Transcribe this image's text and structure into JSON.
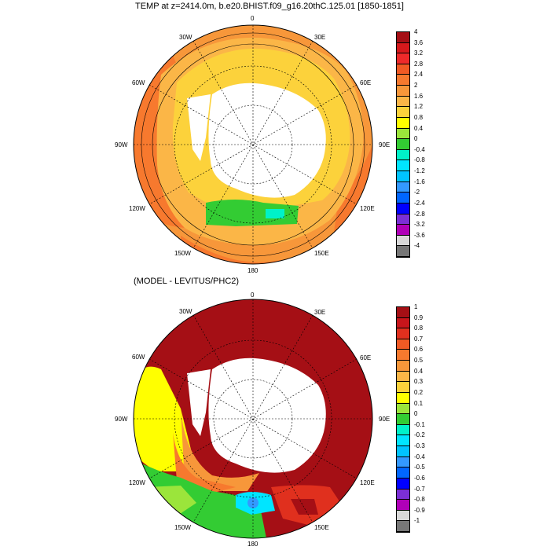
{
  "panel1": {
    "title": "TEMP at z=2414.0m, b.e20.BHIST.f09_g16.20thC.125.01 [1850-1851]",
    "lon_labels": {
      "n": "0",
      "nne": "30E",
      "ene": "60E",
      "e": "90E",
      "ese": "120E",
      "sse": "150E",
      "s": "180",
      "ssw": "150W",
      "wsw": "120W",
      "w": "90W",
      "wnw": "60W",
      "nnw": "30W"
    },
    "colorbar": {
      "labels": [
        "4",
        "3.6",
        "3.2",
        "2.8",
        "2.4",
        "2",
        "1.6",
        "1.2",
        "0.8",
        "0.4",
        "0",
        "-0.4",
        "-0.8",
        "-1.2",
        "-1.6",
        "-2",
        "-2.4",
        "-2.8",
        "-3.2",
        "-3.6",
        "-4"
      ],
      "colors": [
        "#a50f15",
        "#d7191c",
        "#ee2a2a",
        "#f15a24",
        "#f7792e",
        "#f7973a",
        "#fbb647",
        "#fcd23b",
        "#ffff00",
        "#9be53b",
        "#33cc33",
        "#00f2c9",
        "#00e5ff",
        "#00c4ff",
        "#3399ff",
        "#0066ff",
        "#0000ff",
        "#7b2fd6",
        "#b000b8",
        "#d9d9d9",
        "#777777"
      ]
    }
  },
  "panel2": {
    "title": "(MODEL - LEVITUS/PHC2)",
    "lon_labels": {
      "n": "0",
      "nne": "30E",
      "ene": "60E",
      "e": "90E",
      "ese": "120E",
      "sse": "150E",
      "s": "180",
      "ssw": "150W",
      "wsw": "120W",
      "w": "90W",
      "wnw": "60W",
      "nnw": "30W"
    },
    "colorbar": {
      "labels": [
        "1",
        "0.9",
        "0.8",
        "0.7",
        "0.6",
        "0.5",
        "0.4",
        "0.3",
        "0.2",
        "0.1",
        "0",
        "-0.1",
        "-0.2",
        "-0.3",
        "-0.4",
        "-0.5",
        "-0.6",
        "-0.7",
        "-0.8",
        "-0.9",
        "-1"
      ],
      "colors": [
        "#a50f15",
        "#c8151b",
        "#e0301e",
        "#f15a24",
        "#f7792e",
        "#f7973a",
        "#fbb647",
        "#fcd23b",
        "#ffff00",
        "#9be53b",
        "#33cc33",
        "#00f2c9",
        "#00e5ff",
        "#00c4ff",
        "#3399ff",
        "#0066ff",
        "#0000ff",
        "#7b2fd6",
        "#b000b8",
        "#d9d9d9",
        "#777777"
      ]
    }
  }
}
